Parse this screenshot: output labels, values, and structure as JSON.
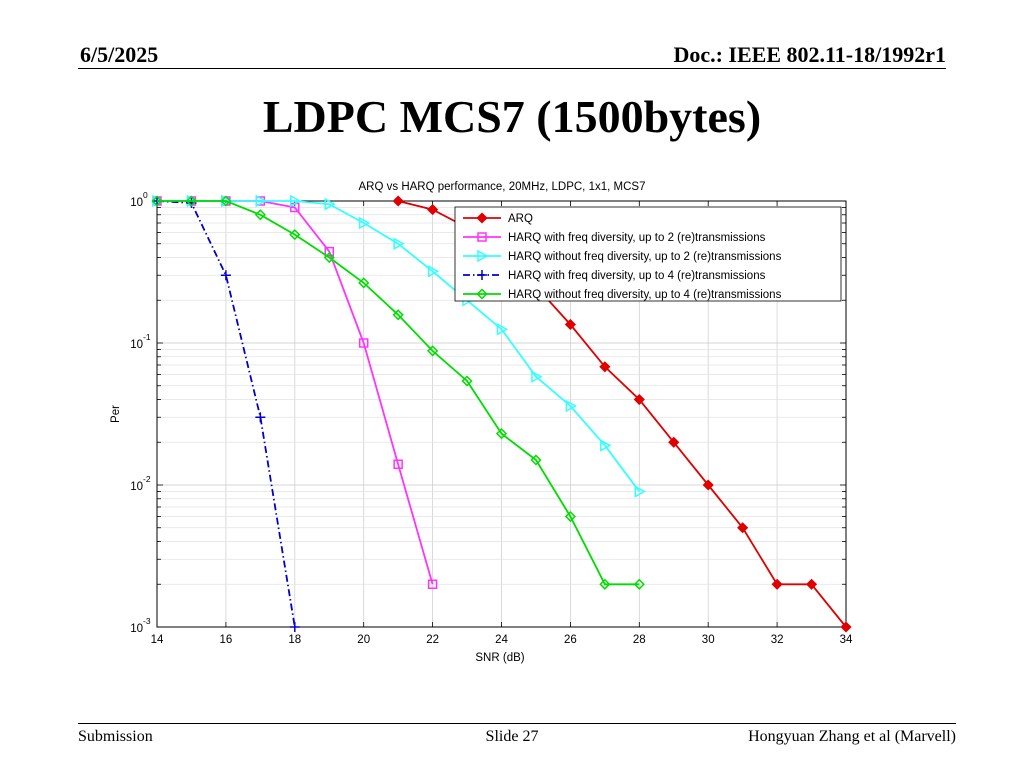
{
  "header": {
    "date": "6/5/2025",
    "doc": "Doc.: IEEE 802.11-18/1992r1"
  },
  "slide_title": "LDPC MCS7 (1500bytes)",
  "footer": {
    "left": "Submission",
    "center": "Slide 27",
    "right": "Hongyuan Zhang et al (Marvell)"
  },
  "chart_data": {
    "type": "line",
    "title": "ARQ vs HARQ performance, 20MHz, LDPC, 1x1, MCS7",
    "xlabel": "SNR (dB)",
    "ylabel": "Per",
    "xlim": [
      14,
      34
    ],
    "ylim": [
      0.001,
      1
    ],
    "yscale": "log",
    "grid": true,
    "legend_position": "top-right",
    "x_ticks": [
      "14",
      "16",
      "18",
      "20",
      "22",
      "24",
      "26",
      "28",
      "30",
      "32",
      "34"
    ],
    "y_ticks": [
      {
        "value": 1,
        "base": "10",
        "exp": "0"
      },
      {
        "value": 0.1,
        "base": "10",
        "exp": "-1"
      },
      {
        "value": 0.01,
        "base": "10",
        "exp": "-2"
      },
      {
        "value": 0.001,
        "base": "10",
        "exp": "-3"
      }
    ],
    "series": [
      {
        "name": "ARQ",
        "color": "#e00000",
        "marker": "diamond-filled",
        "dash": "solid",
        "x": [
          21,
          22,
          23,
          24,
          25,
          26,
          27,
          28,
          29,
          30,
          31,
          32,
          33,
          34
        ],
        "y": [
          1.0,
          0.87,
          0.65,
          0.43,
          0.25,
          0.135,
          0.068,
          0.04,
          0.02,
          0.01,
          0.005,
          0.002,
          0.002,
          0.001
        ]
      },
      {
        "name": "HARQ with freq diversity, up to 2 (re)transmissions",
        "color": "#ff33ff",
        "marker": "square",
        "dash": "solid",
        "x": [
          14,
          15,
          16,
          17,
          18,
          19,
          20,
          21,
          22
        ],
        "y": [
          1.0,
          1.0,
          1.0,
          1.0,
          0.9,
          0.44,
          0.1,
          0.014,
          0.002
        ]
      },
      {
        "name": "HARQ without freq diversity, up to 2 (re)transmissions",
        "color": "#33ffff",
        "marker": "triangle-right",
        "dash": "solid",
        "x": [
          14,
          15,
          16,
          17,
          18,
          19,
          20,
          21,
          22,
          23,
          24,
          25,
          26,
          27,
          28
        ],
        "y": [
          1.0,
          1.0,
          1.0,
          1.0,
          1.0,
          0.95,
          0.7,
          0.5,
          0.32,
          0.2,
          0.125,
          0.058,
          0.036,
          0.019,
          0.009
        ]
      },
      {
        "name": "HARQ with freq diversity, up to 4 (re)transmissions",
        "color": "#0000cc",
        "marker": "plus",
        "dash": "dashdot",
        "x": [
          14,
          15,
          16,
          17,
          18
        ],
        "y": [
          1.0,
          0.97,
          0.3,
          0.03,
          0.001
        ]
      },
      {
        "name": "HARQ without freq diversity, up to 4 (re)transmissions",
        "color": "#00dd00",
        "marker": "diamond",
        "dash": "solid",
        "x": [
          14,
          15,
          16,
          17,
          18,
          19,
          20,
          21,
          22,
          23,
          24,
          25,
          26,
          27,
          28
        ],
        "y": [
          1.0,
          1.0,
          1.0,
          0.8,
          0.58,
          0.4,
          0.265,
          0.158,
          0.088,
          0.054,
          0.023,
          0.015,
          0.006,
          0.002,
          0.002
        ]
      }
    ]
  }
}
